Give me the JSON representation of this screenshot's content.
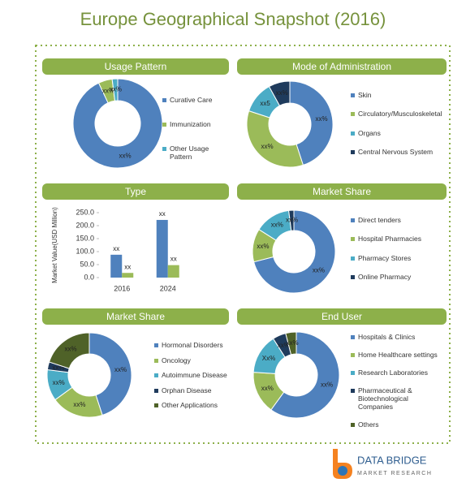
{
  "title": "Europe Geographical Snapshot (2016)",
  "logo": {
    "name": "DATA BRIDGE",
    "tagline": "MARKET RESEARCH"
  },
  "chart_data": [
    {
      "type": "donut",
      "title": "Usage Pattern",
      "categories": [
        "Curative Care",
        "Immunization",
        "Other Usage Pattern"
      ],
      "values": [
        93,
        5,
        2
      ],
      "value_labels": [
        "xx%",
        "xx%",
        "xx%"
      ],
      "colors": [
        "#4f81bd",
        "#9bbb59",
        "#4bacc6"
      ]
    },
    {
      "type": "donut",
      "title": "Mode of Administration",
      "categories": [
        "Skin",
        "Circulatory/Musculoskeletal",
        "Organs",
        "Central Nervous System"
      ],
      "values": [
        45,
        35,
        12,
        8
      ],
      "value_labels": [
        "xx%",
        "xx%",
        "xx5",
        "xx%"
      ],
      "colors": [
        "#4f81bd",
        "#9bbb59",
        "#4bacc6",
        "#1f3b5c"
      ]
    },
    {
      "type": "bar",
      "title": "Type",
      "y_label": "Market Value(USD Million)",
      "categories": [
        "2016",
        "2024"
      ],
      "series": [
        {
          "color": "#4f81bd",
          "values": [
            88,
            222
          ],
          "value_labels": [
            "xx",
            "xx"
          ]
        },
        {
          "color": "#9bbb59",
          "values": [
            18,
            48
          ],
          "value_labels": [
            "xx",
            "xx"
          ]
        }
      ],
      "ylim": [
        0,
        250
      ],
      "yticks": [
        {
          "value": 0,
          "label": "0.0"
        },
        {
          "value": 50,
          "label": "50.0"
        },
        {
          "value": 100,
          "label": "100.0"
        },
        {
          "value": 150,
          "label": "150.0"
        },
        {
          "value": 200,
          "label": "200.0"
        },
        {
          "value": 250,
          "label": "250.0"
        }
      ]
    },
    {
      "type": "donut",
      "title": "Market Share",
      "categories": [
        "Direct tenders",
        "Hospital Pharmacies",
        "Pharmacy Stores",
        "Online Pharmacy"
      ],
      "values": [
        71,
        13,
        14,
        2
      ],
      "value_labels": [
        "xx%",
        "xx%",
        "xx%",
        "xx%"
      ],
      "colors": [
        "#4f81bd",
        "#9bbb59",
        "#4bacc6",
        "#1f3b5c"
      ]
    },
    {
      "type": "donut",
      "title": "Market Share",
      "categories": [
        "Hormonal Disorders",
        "Oncology",
        "Autoimmune Disease",
        "Orphan Disease",
        "Other Applications"
      ],
      "values": [
        45,
        20,
        12,
        3,
        20
      ],
      "value_labels": [
        "xx%",
        "xx%",
        "xx%",
        "xx%",
        "xx%"
      ],
      "colors": [
        "#4f81bd",
        "#9bbb59",
        "#4bacc6",
        "#1f3b5c",
        "#4f6228"
      ]
    },
    {
      "type": "donut",
      "title": "End User",
      "categories": [
        "Hospitals & Clinics",
        "Home Healthcare settings",
        "Research Laboratories",
        "Pharmaceutical & Biotechnological Companies",
        "Others"
      ],
      "values": [
        60,
        16,
        15,
        5,
        4
      ],
      "value_labels": [
        "xx%",
        "xx%",
        "Xx%",
        "xx%",
        "xx%"
      ],
      "colors": [
        "#4f81bd",
        "#9bbb59",
        "#4bacc6",
        "#1f3b5c",
        "#4f6228"
      ]
    }
  ]
}
